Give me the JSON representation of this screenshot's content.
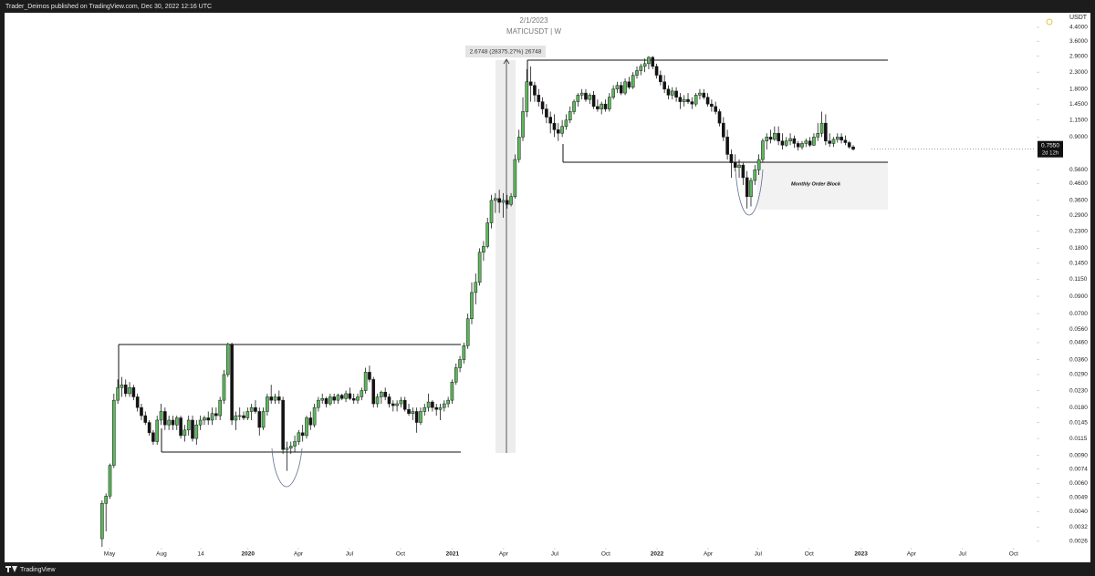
{
  "header": {
    "publisher": "Trader_Deimos published on TradingView.com, Dec 30, 2022 12:16 UTC"
  },
  "footer": {
    "brand": "TradingView"
  },
  "chart_data": {
    "type": "candlestick",
    "title": "2/1/2023",
    "subtitle": "MATICUSDT | W",
    "y_axis_label": "USDT",
    "log_scale": true,
    "up_color": "#5cb85c",
    "down_color": "#131313",
    "measure_label": "2.6748 (28375.27%) 26748",
    "zone_label": "Monthly Order Block",
    "last_price": {
      "value": 0.755,
      "label": "0.7550"
    },
    "countdown": "2d 12h",
    "ylim": [
      0.0024,
      5.43
    ],
    "yticks": [
      {
        "value": 4.4,
        "label": "4.4000"
      },
      {
        "value": 3.6,
        "label": "3.6000"
      },
      {
        "value": 2.9,
        "label": "2.9000"
      },
      {
        "value": 2.3,
        "label": "2.3000"
      },
      {
        "value": 1.8,
        "label": "1.8000"
      },
      {
        "value": 1.45,
        "label": "1.4500"
      },
      {
        "value": 1.15,
        "label": "1.1500"
      },
      {
        "value": 0.9,
        "label": "0.9000"
      },
      {
        "value": 0.56,
        "label": "0.5600"
      },
      {
        "value": 0.46,
        "label": "0.4600"
      },
      {
        "value": 0.36,
        "label": "0.3600"
      },
      {
        "value": 0.29,
        "label": "0.2900"
      },
      {
        "value": 0.23,
        "label": "0.2300"
      },
      {
        "value": 0.18,
        "label": "0.1800"
      },
      {
        "value": 0.145,
        "label": "0.1450"
      },
      {
        "value": 0.115,
        "label": "0.1150"
      },
      {
        "value": 0.09,
        "label": "0.0900"
      },
      {
        "value": 0.07,
        "label": "0.0700"
      },
      {
        "value": 0.056,
        "label": "0.0560"
      },
      {
        "value": 0.046,
        "label": "0.0460"
      },
      {
        "value": 0.036,
        "label": "0.0360"
      },
      {
        "value": 0.029,
        "label": "0.0290"
      },
      {
        "value": 0.023,
        "label": "0.0230"
      },
      {
        "value": 0.018,
        "label": "0.0180"
      },
      {
        "value": 0.0145,
        "label": "0.0145"
      },
      {
        "value": 0.0115,
        "label": "0.0115"
      },
      {
        "value": 0.009,
        "label": "0.0090"
      },
      {
        "value": 0.0074,
        "label": "0.0074"
      },
      {
        "value": 0.006,
        "label": "0.0060"
      },
      {
        "value": 0.0049,
        "label": "0.0049"
      },
      {
        "value": 0.004,
        "label": "0.0040"
      },
      {
        "value": 0.0032,
        "label": "0.0032"
      },
      {
        "value": 0.0026,
        "label": "0.0026"
      }
    ],
    "xlim": [
      -24.8,
      237.4
    ],
    "xticks": [
      {
        "value": 1.9,
        "label": "May"
      },
      {
        "value": 15.1,
        "label": "Aug"
      },
      {
        "value": 25.1,
        "label": "14"
      },
      {
        "value": 37.1,
        "label": "2020"
      },
      {
        "value": 49.9,
        "label": "Apr"
      },
      {
        "value": 62.9,
        "label": "Jul"
      },
      {
        "value": 75.9,
        "label": "Oct"
      },
      {
        "value": 89.1,
        "label": "2021"
      },
      {
        "value": 102.1,
        "label": "Apr"
      },
      {
        "value": 115.1,
        "label": "Jul"
      },
      {
        "value": 128.1,
        "label": "Oct"
      },
      {
        "value": 141.1,
        "label": "2022"
      },
      {
        "value": 154.1,
        "label": "Apr"
      },
      {
        "value": 166.8,
        "label": "Jul"
      },
      {
        "value": 179.8,
        "label": "Oct"
      },
      {
        "value": 193.0,
        "label": "2023"
      },
      {
        "value": 205.8,
        "label": "Apr"
      },
      {
        "value": 218.8,
        "label": "Jul"
      },
      {
        "value": 231.8,
        "label": "Oct"
      }
    ],
    "open": [
      0.0027,
      0.0045,
      0.005,
      0.0078,
      0.02,
      0.024,
      0.025,
      0.022,
      0.024,
      0.021,
      0.018,
      0.016,
      0.0145,
      0.0125,
      0.011,
      0.015,
      0.017,
      0.014,
      0.015,
      0.014,
      0.0155,
      0.012,
      0.013,
      0.015,
      0.0115,
      0.014,
      0.015,
      0.0155,
      0.015,
      0.0165,
      0.016,
      0.02,
      0.029,
      0.045,
      0.015,
      0.016,
      0.016,
      0.0155,
      0.017,
      0.018,
      0.017,
      0.0135,
      0.017,
      0.021,
      0.02,
      0.021,
      0.02,
      0.0098,
      0.01,
      0.0103,
      0.011,
      0.0125,
      0.012,
      0.0155,
      0.014,
      0.018,
      0.02,
      0.0205,
      0.019,
      0.021,
      0.02,
      0.0215,
      0.0205,
      0.022,
      0.0205,
      0.02,
      0.021,
      0.023,
      0.03,
      0.027,
      0.019,
      0.021,
      0.0225,
      0.021,
      0.019,
      0.0185,
      0.019,
      0.02,
      0.0175,
      0.0165,
      0.017,
      0.0145,
      0.017,
      0.018,
      0.0195,
      0.018,
      0.0175,
      0.018,
      0.019,
      0.02,
      0.026,
      0.032,
      0.036,
      0.044,
      0.065,
      0.095,
      0.11,
      0.17,
      0.185,
      0.26,
      0.36,
      0.37,
      0.35,
      0.36,
      0.34,
      0.38,
      0.65,
      0.9,
      1.3,
      2.0,
      1.9,
      1.65,
      1.5,
      1.35,
      1.2,
      1.1,
      1.0,
      0.95,
      1.05,
      1.15,
      1.3,
      1.5,
      1.65,
      1.7,
      1.55,
      1.65,
      1.4,
      1.35,
      1.45,
      1.35,
      1.6,
      1.8,
      1.9,
      1.7,
      2.0,
      1.85,
      2.2,
      2.35,
      2.5,
      2.6,
      2.85,
      2.5,
      2.2,
      2.0,
      1.8,
      1.65,
      1.75,
      1.6,
      1.5,
      1.55,
      1.5,
      1.45,
      1.65,
      1.7,
      1.6,
      1.45,
      1.4,
      1.3,
      1.1,
      0.9,
      0.7,
      0.62,
      0.58,
      0.6,
      0.5,
      0.38,
      0.48,
      0.56,
      0.65,
      0.85,
      0.9,
      0.87,
      0.95,
      0.85,
      0.8,
      0.85,
      0.88,
      0.82,
      0.78,
      0.82,
      0.85,
      0.8,
      0.9,
      0.95,
      1.1,
      0.85,
      0.82,
      0.87,
      0.9,
      0.86,
      0.83,
      0.78
    ],
    "high": [
      0.0047,
      0.0052,
      0.008,
      0.022,
      0.027,
      0.028,
      0.027,
      0.026,
      0.025,
      0.022,
      0.019,
      0.017,
      0.015,
      0.013,
      0.016,
      0.019,
      0.018,
      0.016,
      0.016,
      0.016,
      0.016,
      0.014,
      0.016,
      0.016,
      0.015,
      0.016,
      0.016,
      0.017,
      0.018,
      0.018,
      0.021,
      0.031,
      0.046,
      0.046,
      0.017,
      0.018,
      0.017,
      0.018,
      0.019,
      0.02,
      0.018,
      0.018,
      0.022,
      0.025,
      0.022,
      0.023,
      0.021,
      0.011,
      0.011,
      0.012,
      0.013,
      0.014,
      0.016,
      0.017,
      0.019,
      0.021,
      0.022,
      0.021,
      0.022,
      0.022,
      0.022,
      0.022,
      0.023,
      0.024,
      0.022,
      0.022,
      0.024,
      0.032,
      0.033,
      0.028,
      0.022,
      0.023,
      0.024,
      0.022,
      0.02,
      0.02,
      0.021,
      0.021,
      0.019,
      0.018,
      0.018,
      0.018,
      0.019,
      0.022,
      0.02,
      0.019,
      0.019,
      0.02,
      0.021,
      0.027,
      0.034,
      0.038,
      0.046,
      0.07,
      0.11,
      0.125,
      0.18,
      0.2,
      0.28,
      0.39,
      0.4,
      0.42,
      0.4,
      0.39,
      0.4,
      0.7,
      1.0,
      1.6,
      2.4,
      2.5,
      2.0,
      1.8,
      1.6,
      1.45,
      1.3,
      1.25,
      1.1,
      1.15,
      1.25,
      1.4,
      1.55,
      1.7,
      1.8,
      1.8,
      1.7,
      1.75,
      1.55,
      1.5,
      1.55,
      1.7,
      1.9,
      2.0,
      2.0,
      2.1,
      2.15,
      2.3,
      2.5,
      2.6,
      2.8,
      2.9,
      2.9,
      2.6,
      2.35,
      2.2,
      1.9,
      1.85,
      1.85,
      1.7,
      1.65,
      1.7,
      1.6,
      1.7,
      1.8,
      1.8,
      1.7,
      1.55,
      1.5,
      1.35,
      1.2,
      1.0,
      0.75,
      0.7,
      0.65,
      0.62,
      0.55,
      0.5,
      0.6,
      0.7,
      0.88,
      0.95,
      1.0,
      1.05,
      1.05,
      0.95,
      0.9,
      0.95,
      0.92,
      0.85,
      0.85,
      0.88,
      0.9,
      0.95,
      1.1,
      1.3,
      1.25,
      0.95,
      0.9,
      0.95,
      0.95,
      0.92,
      0.85,
      0.8
    ],
    "low": [
      0.0024,
      0.003,
      0.0048,
      0.0075,
      0.019,
      0.021,
      0.021,
      0.021,
      0.02,
      0.017,
      0.015,
      0.014,
      0.012,
      0.0105,
      0.0105,
      0.014,
      0.013,
      0.013,
      0.013,
      0.013,
      0.0115,
      0.011,
      0.012,
      0.011,
      0.0105,
      0.013,
      0.014,
      0.014,
      0.014,
      0.015,
      0.015,
      0.019,
      0.028,
      0.014,
      0.013,
      0.015,
      0.015,
      0.015,
      0.015,
      0.0165,
      0.012,
      0.013,
      0.016,
      0.019,
      0.019,
      0.019,
      0.0092,
      0.0072,
      0.0092,
      0.0095,
      0.0105,
      0.011,
      0.0115,
      0.013,
      0.0135,
      0.017,
      0.019,
      0.018,
      0.0185,
      0.019,
      0.019,
      0.02,
      0.0195,
      0.02,
      0.019,
      0.019,
      0.02,
      0.022,
      0.026,
      0.018,
      0.018,
      0.019,
      0.02,
      0.018,
      0.017,
      0.017,
      0.018,
      0.017,
      0.016,
      0.015,
      0.0125,
      0.014,
      0.016,
      0.017,
      0.017,
      0.016,
      0.015,
      0.017,
      0.018,
      0.019,
      0.025,
      0.03,
      0.034,
      0.042,
      0.06,
      0.08,
      0.105,
      0.15,
      0.18,
      0.24,
      0.3,
      0.3,
      0.28,
      0.32,
      0.33,
      0.37,
      0.62,
      0.85,
      1.2,
      1.5,
      1.5,
      1.4,
      1.25,
      1.1,
      0.95,
      0.9,
      0.85,
      0.9,
      1.0,
      1.1,
      1.25,
      1.4,
      1.55,
      1.5,
      1.45,
      1.35,
      1.3,
      1.25,
      1.3,
      1.3,
      1.55,
      1.7,
      1.65,
      1.65,
      1.8,
      1.8,
      2.1,
      2.2,
      2.3,
      2.4,
      2.4,
      2.1,
      1.9,
      1.7,
      1.55,
      1.55,
      1.5,
      1.35,
      1.4,
      1.45,
      1.35,
      1.4,
      1.55,
      1.55,
      1.4,
      1.3,
      1.25,
      1.05,
      0.85,
      0.65,
      0.5,
      0.55,
      0.5,
      0.45,
      0.32,
      0.33,
      0.45,
      0.52,
      0.62,
      0.75,
      0.82,
      0.85,
      0.8,
      0.75,
      0.78,
      0.8,
      0.77,
      0.74,
      0.75,
      0.78,
      0.78,
      0.79,
      0.85,
      0.9,
      0.8,
      0.78,
      0.78,
      0.83,
      0.82,
      0.8,
      0.76,
      0.74
    ],
    "close": [
      0.0045,
      0.005,
      0.0078,
      0.02,
      0.024,
      0.025,
      0.022,
      0.024,
      0.021,
      0.018,
      0.016,
      0.0145,
      0.0125,
      0.011,
      0.015,
      0.017,
      0.014,
      0.015,
      0.014,
      0.0155,
      0.012,
      0.013,
      0.015,
      0.0115,
      0.014,
      0.015,
      0.0155,
      0.015,
      0.0165,
      0.016,
      0.02,
      0.029,
      0.045,
      0.015,
      0.016,
      0.016,
      0.0155,
      0.017,
      0.018,
      0.017,
      0.0135,
      0.017,
      0.021,
      0.02,
      0.021,
      0.02,
      0.0098,
      0.01,
      0.0103,
      0.011,
      0.0125,
      0.012,
      0.0155,
      0.014,
      0.018,
      0.02,
      0.0205,
      0.019,
      0.021,
      0.02,
      0.0215,
      0.0205,
      0.022,
      0.0205,
      0.02,
      0.021,
      0.023,
      0.03,
      0.027,
      0.019,
      0.021,
      0.0225,
      0.021,
      0.019,
      0.0185,
      0.019,
      0.02,
      0.0175,
      0.0165,
      0.017,
      0.0145,
      0.017,
      0.018,
      0.0195,
      0.018,
      0.0175,
      0.018,
      0.019,
      0.02,
      0.026,
      0.032,
      0.036,
      0.044,
      0.065,
      0.095,
      0.11,
      0.17,
      0.185,
      0.26,
      0.36,
      0.37,
      0.35,
      0.36,
      0.34,
      0.38,
      0.65,
      0.9,
      1.3,
      2.0,
      1.9,
      1.65,
      1.5,
      1.35,
      1.2,
      1.1,
      1.0,
      0.95,
      1.05,
      1.15,
      1.3,
      1.5,
      1.65,
      1.7,
      1.55,
      1.65,
      1.4,
      1.35,
      1.45,
      1.35,
      1.6,
      1.8,
      1.9,
      1.7,
      2.0,
      1.85,
      2.2,
      2.35,
      2.5,
      2.6,
      2.85,
      2.5,
      2.2,
      2.0,
      1.8,
      1.65,
      1.75,
      1.6,
      1.5,
      1.55,
      1.5,
      1.45,
      1.65,
      1.7,
      1.6,
      1.45,
      1.4,
      1.3,
      1.1,
      0.9,
      0.7,
      0.62,
      0.58,
      0.6,
      0.5,
      0.38,
      0.48,
      0.56,
      0.65,
      0.85,
      0.9,
      0.87,
      0.95,
      0.85,
      0.8,
      0.85,
      0.88,
      0.82,
      0.78,
      0.82,
      0.85,
      0.8,
      0.9,
      0.95,
      1.1,
      0.85,
      0.82,
      0.87,
      0.9,
      0.86,
      0.83,
      0.78,
      0.755
    ]
  }
}
